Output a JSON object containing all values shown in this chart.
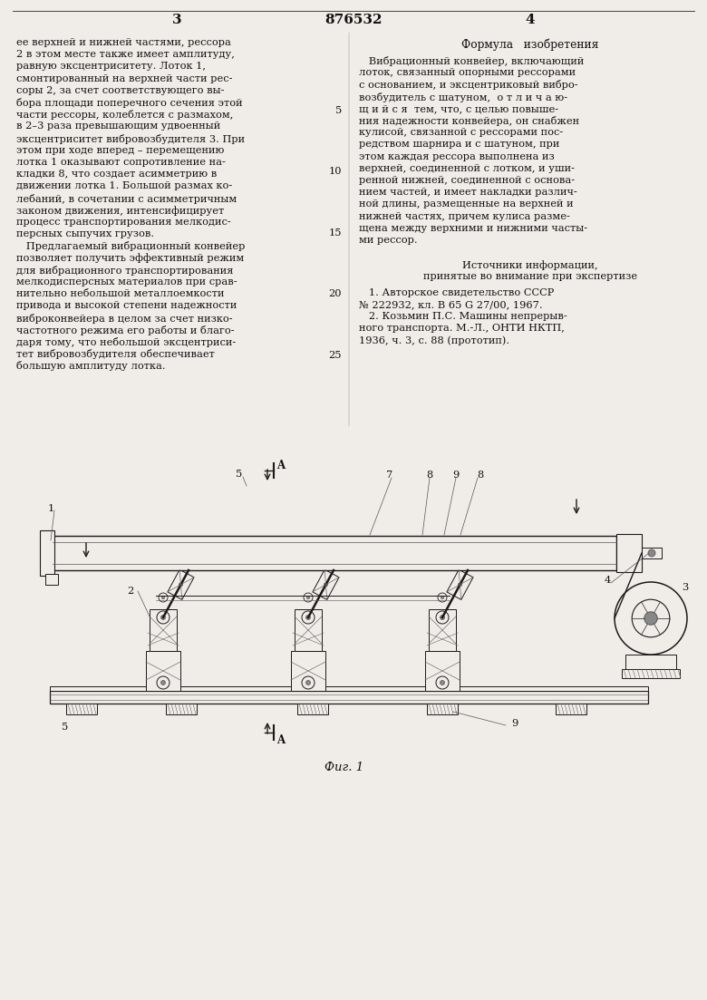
{
  "bg_color": "#f0ede8",
  "text_color": "#1a1a1a",
  "page_num_left": "3",
  "patent_num": "876532",
  "page_num_right": "4",
  "left_col_lines": [
    "ее верхней и нижней частями, рессора",
    "2 в этом месте также имеет амплитуду,",
    "равную эксцентриситету. Лоток 1,",
    "смонтированный на верхней части рес-",
    "соры 2, за счет соответствующего вы-",
    "бора площади поперечного сечения этой",
    "части рессоры, колеблется с размахом,",
    "в 2–3 раза превышающим удвоенный",
    "эксцентриситет вибровозбудителя 3. При",
    "этом при ходе вперед – перемещению",
    "лотка 1 оказывают сопротивление на-",
    "кладки 8, что создает асимметрию в",
    "движении лотка 1. Большой размах ко-",
    "лебаний, в сочетании с асимметричным",
    "законом движения, интенсифицирует",
    "процесс транспортирования мелкодис-",
    "персных сыпучих грузов.",
    "   Предлагаемый вибрационный конвейер",
    "позволяет получить эффективный режим",
    "для вибрационного транспортирования",
    "мелкодисперсных материалов при срав-",
    "нительно небольшой металлоемкости",
    "привода и высокой степени надежности",
    "виброконвейера в целом за счет низко-",
    "частотного режима его работы и благо-",
    "даря тому, что небольшой эксцентриси-",
    "тет вибровозбудителя обеспечивает",
    "большую амплитуду лотка."
  ],
  "right_col_header": "Формула   изобретения",
  "right_col_lines": [
    "   Вибрационный конвейер, включающий",
    "лоток, связанный опорными рессорами",
    "с основанием, и эксцентриковый вибро-",
    "возбудитель с шатуном,  о т л и ч а ю-",
    "щ и й с я  тем, что, с целью повыше-",
    "ния надежности конвейера, он снабжен",
    "кулисой, связанной с рессорами пос-",
    "редством шарнира и с шатуном, при",
    "этом каждая рессора выполнена из",
    "верхней, соединенной с лотком, и уши-",
    "ренной нижней, соединенной с основа-",
    "нием частей, и имеет накладки различ-",
    "ной длины, размещенные на верхней и",
    "нижней частях, причем кулиса разме-",
    "щена между верхними и нижними часты-",
    "ми рессор."
  ],
  "sources_header": "Источники информации,",
  "sources_subheader": "принятые во внимание при экспертизе",
  "source_lines": [
    "   1. Авторское свидетельство СССР",
    "№ 222932, кл. В 65 G 27/00, 1967.",
    "   2. Козьмин П.С. Машины непрерыв-",
    "ного транспорта. М.-Л., ОНТИ НКТП,",
    "1936, ч. 3, с. 88 (прототип)."
  ],
  "line_numbers_y": [
    117,
    184,
    252,
    319,
    387
  ],
  "line_numbers_v": [
    5,
    10,
    15,
    20,
    25
  ],
  "fig_caption": "Фиг. 1"
}
